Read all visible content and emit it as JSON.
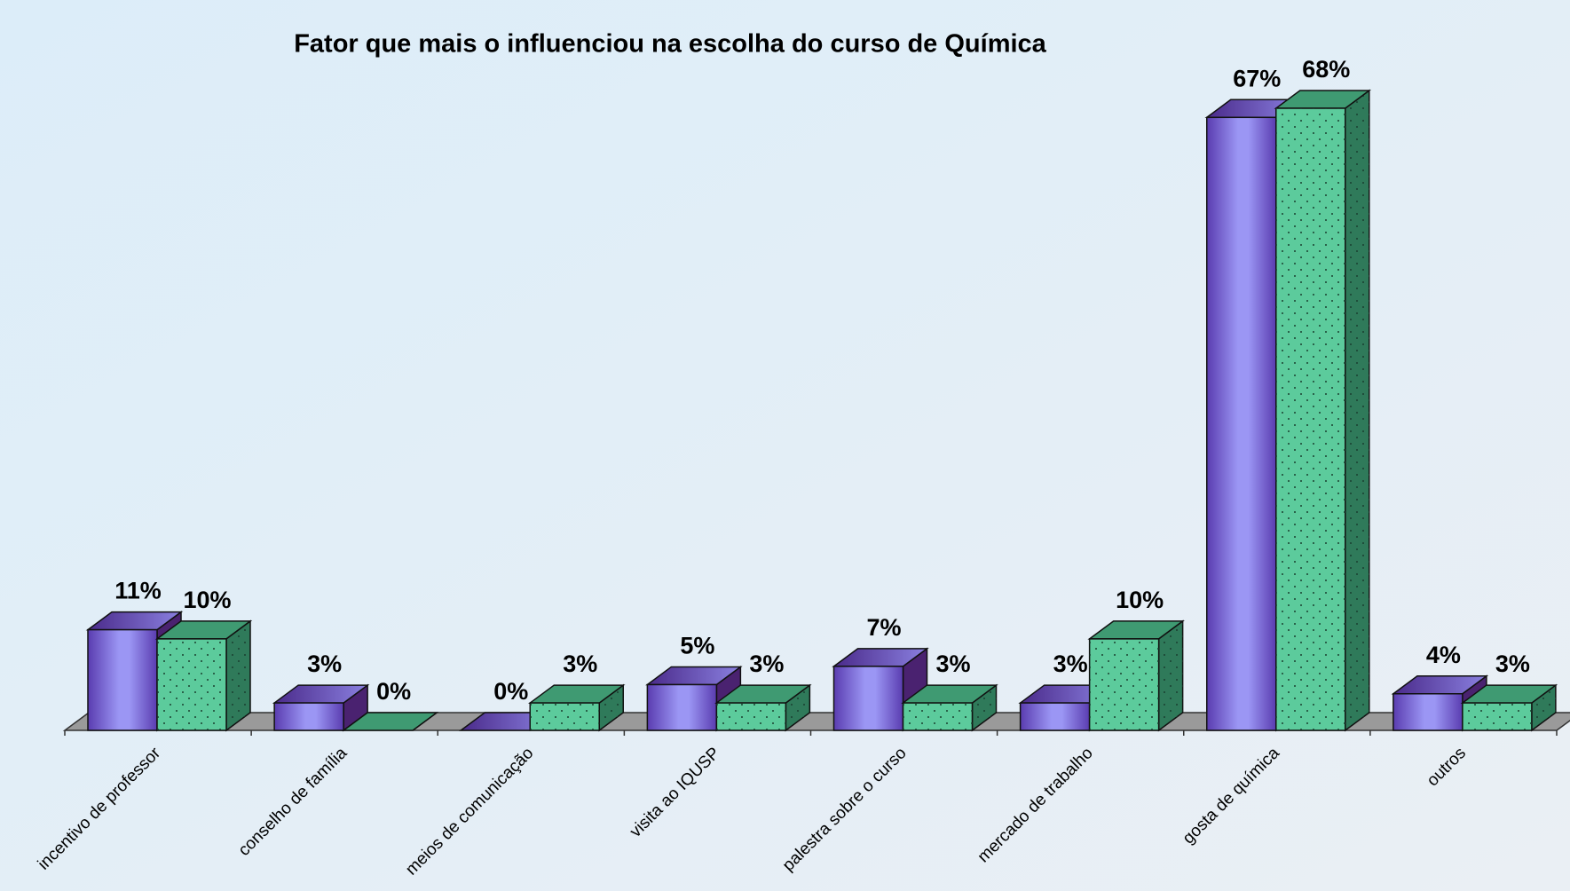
{
  "chart_data": {
    "type": "bar3d",
    "title": "Fator que mais o influenciou na escolha do curso de Química",
    "categories": [
      "incentivo de professor",
      "conselho de família",
      "meios de comunicação",
      "visita ao IQUSP",
      "palestra sobre o curso",
      "mercado de trabalho",
      "gosta de química",
      "outros"
    ],
    "series": [
      {
        "color": "#8c84ec",
        "values": [
          11,
          3,
          0,
          5,
          7,
          3,
          67,
          4
        ],
        "value_labels": [
          "11%",
          "3%",
          "0%",
          "5%",
          "7%",
          "3%",
          "67%",
          "4%"
        ]
      },
      {
        "color": "#5ccb9c",
        "values": [
          10,
          0,
          3,
          3,
          3,
          10,
          68,
          3
        ],
        "value_labels": [
          "10%",
          "0%",
          "3%",
          "3%",
          "3%",
          "10%",
          "68%",
          "3%"
        ]
      }
    ]
  }
}
